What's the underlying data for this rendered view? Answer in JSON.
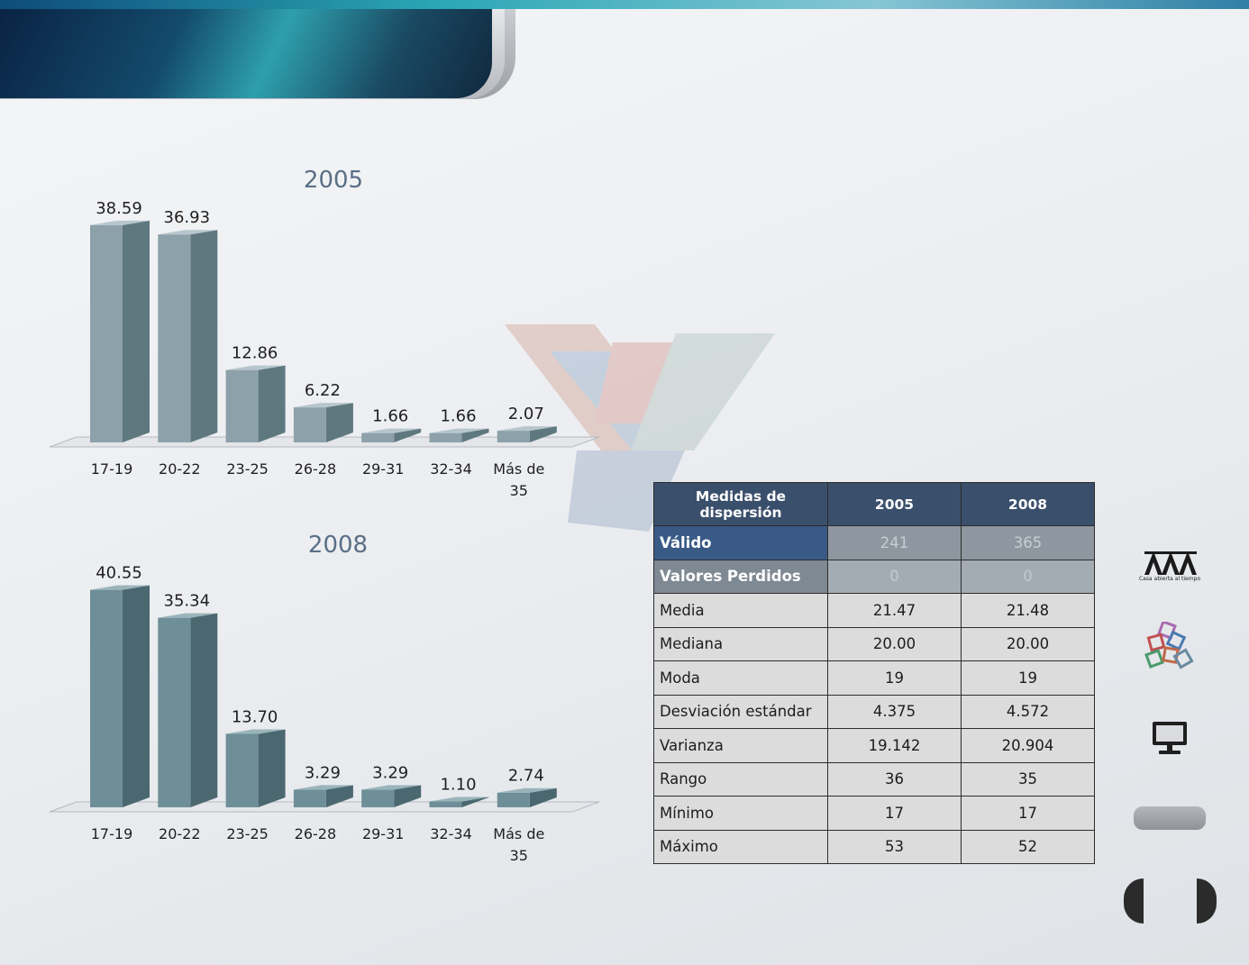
{
  "chart_data": [
    {
      "type": "bar",
      "title": "2005",
      "categories": [
        "17-19",
        "20-22",
        "23-25",
        "26-28",
        "29-31",
        "32-34",
        "Más de 35"
      ],
      "values": [
        38.59,
        36.93,
        12.86,
        6.22,
        1.66,
        1.66,
        2.07
      ],
      "value_labels": [
        "38.59",
        "36.93",
        "12.86",
        "6.22",
        "1.66",
        "1.66",
        "2.07"
      ],
      "ylim": [
        0,
        40
      ],
      "grid": false,
      "legend": "none",
      "colors": {
        "front": "#8da1aa",
        "side": "#5f7880",
        "top": "#b7c6cd"
      }
    },
    {
      "type": "bar",
      "title": "2008",
      "categories": [
        "17-19",
        "20-22",
        "23-25",
        "26-28",
        "29-31",
        "32-34",
        "Más de 35"
      ],
      "values": [
        40.55,
        35.34,
        13.7,
        3.29,
        3.29,
        1.1,
        2.74
      ],
      "value_labels": [
        "40.55",
        "35.34",
        "13.70",
        "3.29",
        "3.29",
        "1.10",
        "2.74"
      ],
      "ylim": [
        0,
        42
      ],
      "grid": false,
      "legend": "none",
      "colors": {
        "front": "#6f8f98",
        "side": "#4b6870",
        "top": "#9ab4bb"
      }
    }
  ],
  "table": {
    "header": [
      "Medidas  de dispersión",
      "2005",
      "2008"
    ],
    "rows": [
      [
        "Válido",
        "241",
        "365"
      ],
      [
        "Valores Perdidos",
        "0",
        "0"
      ],
      [
        "Media",
        "21.47",
        "21.48"
      ],
      [
        "Mediana",
        "20.00",
        "20.00"
      ],
      [
        "Moda",
        "19",
        "19"
      ],
      [
        "Desviación estándar",
        "4.375",
        "4.572"
      ],
      [
        "Varianza",
        "19.142",
        "20.904"
      ],
      [
        "Rango",
        "36",
        "35"
      ],
      [
        "Mínimo",
        "17",
        "17"
      ],
      [
        "Máximo",
        "53",
        "52"
      ]
    ]
  },
  "sidebar": {
    "logo_caption": "Casa abierta al tiempo",
    "icons": [
      "uam-logo-icon",
      "colored-squares-logo-icon",
      "monitor-icon"
    ]
  },
  "navigation": {
    "icons": [
      "prev-arrow-icon",
      "next-arrow-icon",
      "nav-pill-button"
    ]
  },
  "theme_colors": {
    "header_dark": "#0a2344",
    "header_teal": "#2e9fad",
    "table_header": "#3a4f6b"
  }
}
